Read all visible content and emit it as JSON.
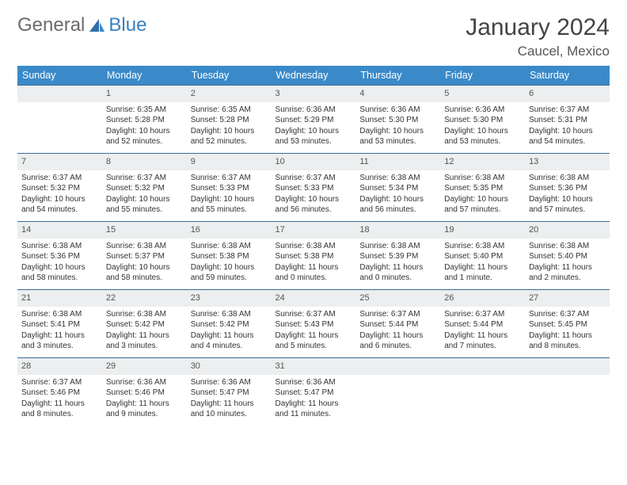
{
  "brand": {
    "part1": "General",
    "part2": "Blue"
  },
  "title": "January 2024",
  "location": "Caucel, Mexico",
  "colors": {
    "header_bg": "#3a8ac9",
    "header_text": "#ffffff",
    "row_border": "#3a6a9a",
    "daynum_bg": "#eceeef",
    "body_text": "#333333",
    "page_bg": "#ffffff",
    "logo_gray": "#6b6b6b",
    "logo_blue": "#3a7fbf"
  },
  "weekdays": [
    "Sunday",
    "Monday",
    "Tuesday",
    "Wednesday",
    "Thursday",
    "Friday",
    "Saturday"
  ],
  "weeks": [
    [
      null,
      {
        "n": "1",
        "sr": "6:35 AM",
        "ss": "5:28 PM",
        "dl": "10 hours and 52 minutes."
      },
      {
        "n": "2",
        "sr": "6:35 AM",
        "ss": "5:28 PM",
        "dl": "10 hours and 52 minutes."
      },
      {
        "n": "3",
        "sr": "6:36 AM",
        "ss": "5:29 PM",
        "dl": "10 hours and 53 minutes."
      },
      {
        "n": "4",
        "sr": "6:36 AM",
        "ss": "5:30 PM",
        "dl": "10 hours and 53 minutes."
      },
      {
        "n": "5",
        "sr": "6:36 AM",
        "ss": "5:30 PM",
        "dl": "10 hours and 53 minutes."
      },
      {
        "n": "6",
        "sr": "6:37 AM",
        "ss": "5:31 PM",
        "dl": "10 hours and 54 minutes."
      }
    ],
    [
      {
        "n": "7",
        "sr": "6:37 AM",
        "ss": "5:32 PM",
        "dl": "10 hours and 54 minutes."
      },
      {
        "n": "8",
        "sr": "6:37 AM",
        "ss": "5:32 PM",
        "dl": "10 hours and 55 minutes."
      },
      {
        "n": "9",
        "sr": "6:37 AM",
        "ss": "5:33 PM",
        "dl": "10 hours and 55 minutes."
      },
      {
        "n": "10",
        "sr": "6:37 AM",
        "ss": "5:33 PM",
        "dl": "10 hours and 56 minutes."
      },
      {
        "n": "11",
        "sr": "6:38 AM",
        "ss": "5:34 PM",
        "dl": "10 hours and 56 minutes."
      },
      {
        "n": "12",
        "sr": "6:38 AM",
        "ss": "5:35 PM",
        "dl": "10 hours and 57 minutes."
      },
      {
        "n": "13",
        "sr": "6:38 AM",
        "ss": "5:36 PM",
        "dl": "10 hours and 57 minutes."
      }
    ],
    [
      {
        "n": "14",
        "sr": "6:38 AM",
        "ss": "5:36 PM",
        "dl": "10 hours and 58 minutes."
      },
      {
        "n": "15",
        "sr": "6:38 AM",
        "ss": "5:37 PM",
        "dl": "10 hours and 58 minutes."
      },
      {
        "n": "16",
        "sr": "6:38 AM",
        "ss": "5:38 PM",
        "dl": "10 hours and 59 minutes."
      },
      {
        "n": "17",
        "sr": "6:38 AM",
        "ss": "5:38 PM",
        "dl": "11 hours and 0 minutes."
      },
      {
        "n": "18",
        "sr": "6:38 AM",
        "ss": "5:39 PM",
        "dl": "11 hours and 0 minutes."
      },
      {
        "n": "19",
        "sr": "6:38 AM",
        "ss": "5:40 PM",
        "dl": "11 hours and 1 minute."
      },
      {
        "n": "20",
        "sr": "6:38 AM",
        "ss": "5:40 PM",
        "dl": "11 hours and 2 minutes."
      }
    ],
    [
      {
        "n": "21",
        "sr": "6:38 AM",
        "ss": "5:41 PM",
        "dl": "11 hours and 3 minutes."
      },
      {
        "n": "22",
        "sr": "6:38 AM",
        "ss": "5:42 PM",
        "dl": "11 hours and 3 minutes."
      },
      {
        "n": "23",
        "sr": "6:38 AM",
        "ss": "5:42 PM",
        "dl": "11 hours and 4 minutes."
      },
      {
        "n": "24",
        "sr": "6:37 AM",
        "ss": "5:43 PM",
        "dl": "11 hours and 5 minutes."
      },
      {
        "n": "25",
        "sr": "6:37 AM",
        "ss": "5:44 PM",
        "dl": "11 hours and 6 minutes."
      },
      {
        "n": "26",
        "sr": "6:37 AM",
        "ss": "5:44 PM",
        "dl": "11 hours and 7 minutes."
      },
      {
        "n": "27",
        "sr": "6:37 AM",
        "ss": "5:45 PM",
        "dl": "11 hours and 8 minutes."
      }
    ],
    [
      {
        "n": "28",
        "sr": "6:37 AM",
        "ss": "5:46 PM",
        "dl": "11 hours and 8 minutes."
      },
      {
        "n": "29",
        "sr": "6:36 AM",
        "ss": "5:46 PM",
        "dl": "11 hours and 9 minutes."
      },
      {
        "n": "30",
        "sr": "6:36 AM",
        "ss": "5:47 PM",
        "dl": "11 hours and 10 minutes."
      },
      {
        "n": "31",
        "sr": "6:36 AM",
        "ss": "5:47 PM",
        "dl": "11 hours and 11 minutes."
      },
      null,
      null,
      null
    ]
  ],
  "labels": {
    "sunrise": "Sunrise:",
    "sunset": "Sunset:",
    "daylight": "Daylight:"
  }
}
